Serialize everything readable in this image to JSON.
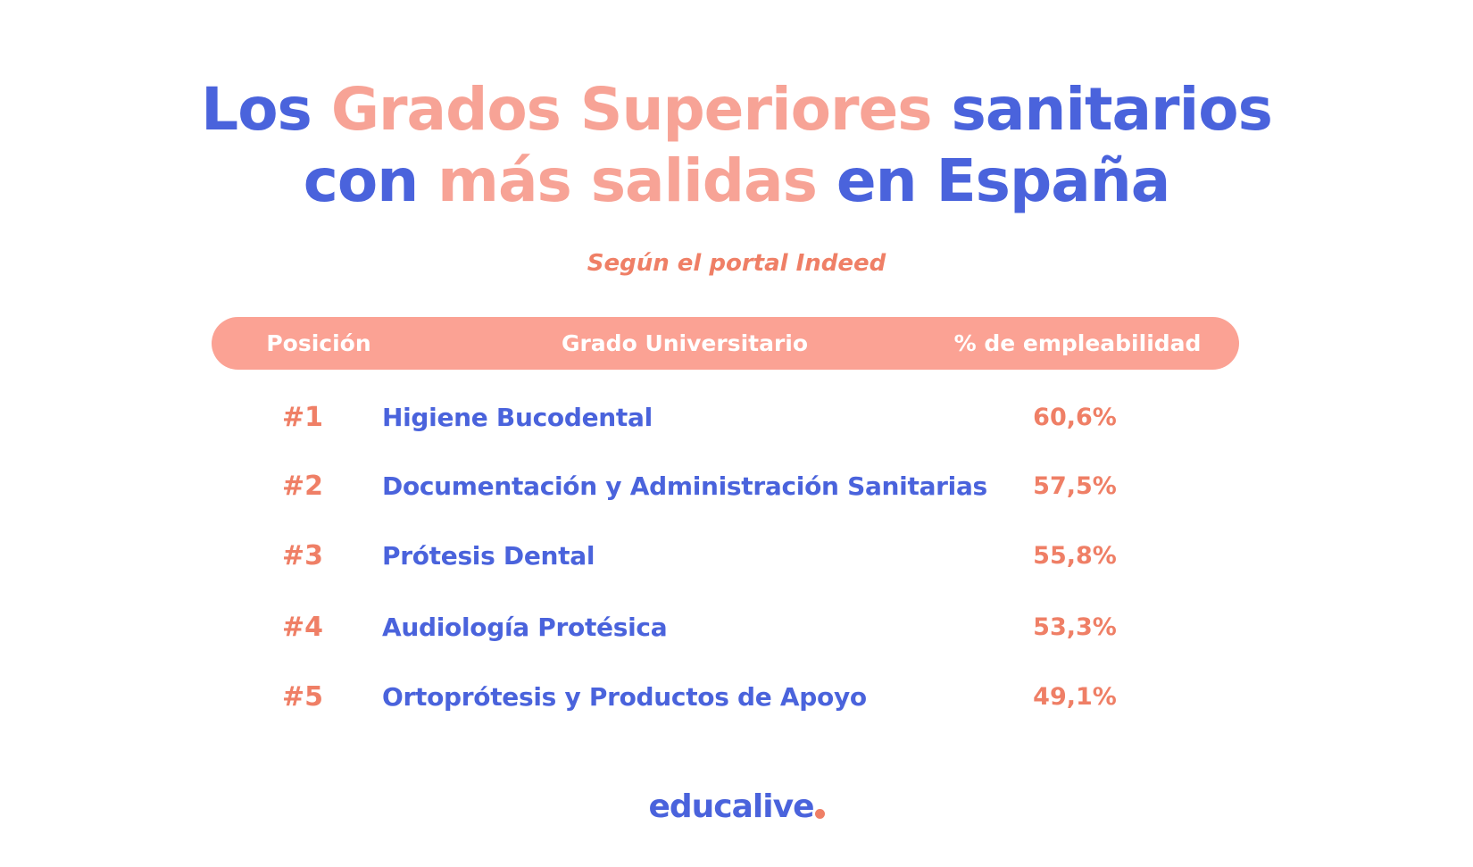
{
  "title": {
    "line1": {
      "part1": "Los ",
      "part2": "Grados Superiores",
      "part3": " sanitarios"
    },
    "line2": {
      "part1": "con ",
      "part2": "más salidas",
      "part3": " en España"
    }
  },
  "subtitle": "Según el portal Indeed",
  "table": {
    "headers": {
      "position": "Posición",
      "degree": "Grado Universitario",
      "employability": "% de empleabilidad"
    },
    "rows": [
      {
        "rank": "#1",
        "name": "Higiene Bucodental",
        "pct": "60,6%"
      },
      {
        "rank": "#2",
        "name": "Documentación y Administración Sanitarias",
        "pct": "57,5%"
      },
      {
        "rank": "#3",
        "name": "Prótesis Dental",
        "pct": "55,8%"
      },
      {
        "rank": "#4",
        "name": "Audiología Protésica",
        "pct": "53,3%"
      },
      {
        "rank": "#5",
        "name": "Ortoprótesis y Productos de Apoyo",
        "pct": "49,1%"
      }
    ]
  },
  "logo": {
    "text": "educalive",
    "accent": "#ef7f66",
    "color": "#4a63dc"
  },
  "colors": {
    "blue": "#4a63dc",
    "salmon": "#f7a396",
    "coral": "#ef7f66",
    "header_bg": "#fba294"
  }
}
